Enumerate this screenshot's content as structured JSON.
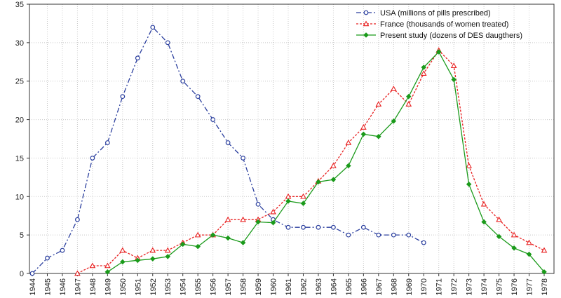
{
  "chart_data": {
    "type": "line",
    "title": "",
    "xlabel": "",
    "ylabel": "",
    "x": [
      1944,
      1945,
      1946,
      1947,
      1948,
      1949,
      1950,
      1951,
      1952,
      1953,
      1954,
      1955,
      1956,
      1957,
      1958,
      1959,
      1960,
      1961,
      1962,
      1963,
      1964,
      1965,
      1966,
      1967,
      1968,
      1969,
      1970,
      1971,
      1972,
      1973,
      1974,
      1975,
      1976,
      1977,
      1978
    ],
    "xlim": [
      1944,
      1978
    ],
    "ylim": [
      0,
      35
    ],
    "yticks": [
      0,
      5,
      10,
      15,
      20,
      25,
      30,
      35
    ],
    "grid": true,
    "legend_position": "top-right",
    "series": [
      {
        "name": "USA (millions of pills prescribed)",
        "color": "#2b3f9e",
        "line_style": "dash-dot",
        "marker": "circle",
        "x": [
          1944,
          1945,
          1946,
          1947,
          1948,
          1949,
          1950,
          1951,
          1952,
          1953,
          1954,
          1955,
          1956,
          1957,
          1958,
          1959,
          1960,
          1961,
          1962,
          1963,
          1964,
          1965,
          1966,
          1967,
          1968,
          1969,
          1970
        ],
        "values": [
          0,
          2,
          3,
          7,
          15,
          17,
          23,
          28,
          32,
          30,
          25,
          23,
          20,
          17,
          15,
          9,
          7,
          6,
          6,
          6,
          6,
          5,
          6,
          5,
          5,
          5,
          4
        ]
      },
      {
        "name": "France (thousands of women treated)",
        "color": "#e82020",
        "line_style": "dotted",
        "marker": "triangle",
        "x": [
          1947,
          1948,
          1949,
          1950,
          1951,
          1952,
          1953,
          1954,
          1955,
          1956,
          1957,
          1958,
          1959,
          1960,
          1961,
          1962,
          1963,
          1964,
          1965,
          1966,
          1967,
          1968,
          1969,
          1970,
          1971,
          1972,
          1973,
          1974,
          1975,
          1976,
          1977,
          1978
        ],
        "values": [
          0,
          1,
          1,
          3,
          2,
          3,
          3,
          4,
          5,
          5,
          7,
          7,
          7,
          8,
          10,
          10,
          12,
          14,
          17,
          19,
          22,
          24,
          22,
          26,
          29,
          27,
          14,
          9,
          7,
          5,
          4,
          3
        ]
      },
      {
        "name": "Present study (dozens of DES daugthers)",
        "color": "#1a9a1a",
        "line_style": "solid",
        "marker": "diamond",
        "x": [
          1949,
          1950,
          1951,
          1952,
          1953,
          1954,
          1955,
          1956,
          1957,
          1958,
          1959,
          1960,
          1961,
          1962,
          1963,
          1964,
          1965,
          1966,
          1967,
          1968,
          1969,
          1970,
          1971,
          1972,
          1973,
          1974,
          1975,
          1976,
          1977,
          1978
        ],
        "values": [
          0.2,
          1.5,
          1.7,
          1.9,
          2.2,
          3.8,
          3.5,
          5,
          4.6,
          4,
          6.7,
          6.6,
          9.4,
          9.1,
          11.9,
          12.2,
          14,
          18.1,
          17.8,
          19.8,
          23,
          26.8,
          28.8,
          25.2,
          11.6,
          6.7,
          4.8,
          3.3,
          2.5,
          0.2
        ]
      }
    ]
  }
}
